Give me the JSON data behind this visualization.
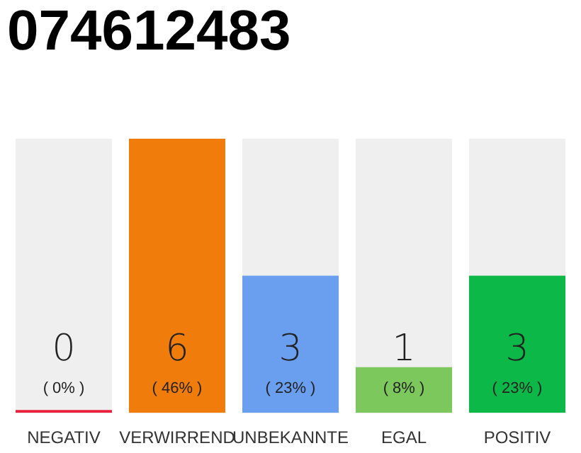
{
  "chart_data": {
    "type": "bar",
    "title": "074612483",
    "categories": [
      "NEGATIV",
      "VERWIRREND",
      "UNBEKANNTE",
      "EGAL",
      "POSITIV"
    ],
    "values": [
      0,
      6,
      3,
      1,
      3
    ],
    "colors": [
      "#e8203c",
      "#f07c0c",
      "#6a9ff0",
      "#7cc85c",
      "#0cb848"
    ],
    "value_labels": [
      "0",
      "6",
      "3",
      "1",
      "3"
    ],
    "annotations": [
      "( 0% )",
      "( 46% )",
      "( 23% )",
      "( 8% )",
      "( 23% )"
    ],
    "grid": false,
    "legend": false
  }
}
